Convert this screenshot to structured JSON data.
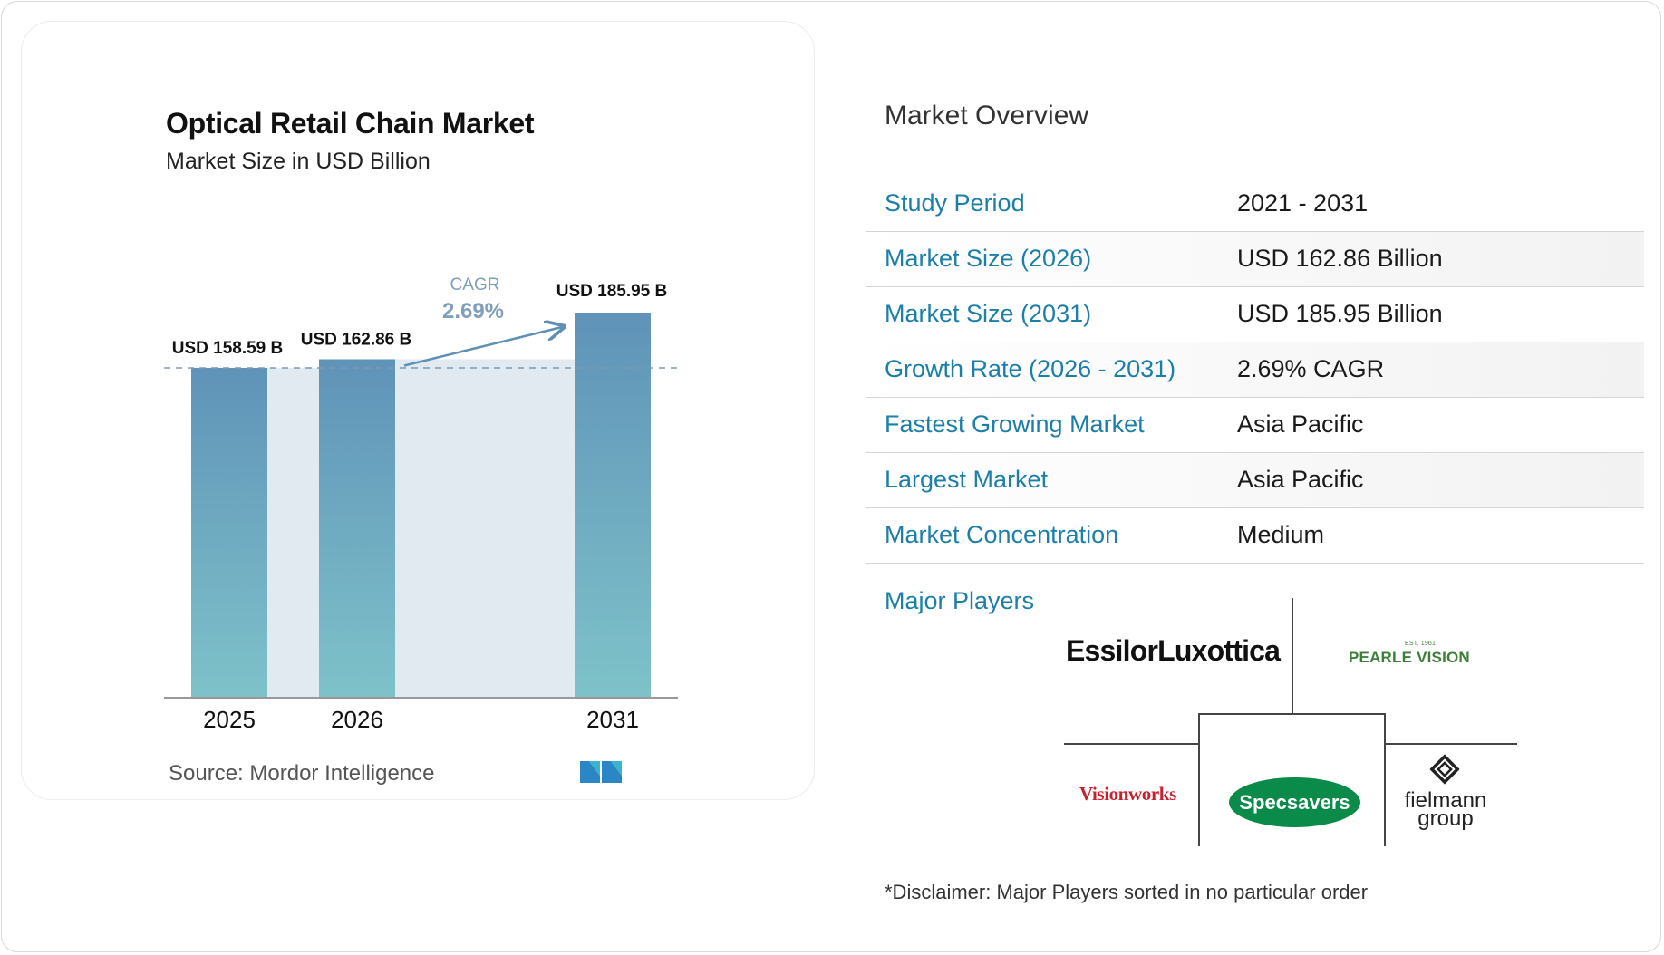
{
  "chart_data": {
    "type": "bar",
    "title": "Optical Retail Chain Market",
    "subtitle": "Market Size in USD Billion",
    "categories": [
      "2025",
      "2026",
      "2031"
    ],
    "values": [
      158.59,
      162.86,
      185.95
    ],
    "value_labels": [
      "USD 158.59 B",
      "USD 162.86 B",
      "USD 185.95 B"
    ],
    "cagr_label": "CAGR",
    "cagr_value": "2.69%",
    "source_label": "Source:",
    "source_name": "Mordor Intelligence",
    "colors": {
      "bar_top": "#5f93b8",
      "bar_bottom": "#7ec2c9",
      "band": "#e1e9f1",
      "arrow": "#5f8fb3",
      "dash": "#7e9ab2"
    }
  },
  "overview": {
    "title": "Market Overview",
    "rows": [
      {
        "label": "Study Period",
        "value": "2021 - 2031"
      },
      {
        "label": "Market Size (2026)",
        "value": "USD 162.86 Billion"
      },
      {
        "label": "Market Size (2031)",
        "value": "USD 185.95 Billion"
      },
      {
        "label": "Growth Rate (2026 - 2031)",
        "value": "2.69% CAGR"
      },
      {
        "label": "Fastest Growing Market",
        "value": "Asia Pacific"
      },
      {
        "label": "Largest Market",
        "value": "Asia Pacific"
      },
      {
        "label": "Market Concentration",
        "value": "Medium"
      }
    ],
    "players_label": "Major Players",
    "players": {
      "essilor": "EssilorLuxottica",
      "pearle": "PEARLE VISION",
      "pearle_tag": "EST. 1961",
      "visionworks": "Visionworks",
      "specsavers": "Specsavers",
      "fielmann_1": "fielmann",
      "fielmann_2": "group"
    },
    "disclaimer": "*Disclaimer: Major Players sorted in no particular order"
  },
  "colors": {
    "accent": "#1b7fa8"
  }
}
